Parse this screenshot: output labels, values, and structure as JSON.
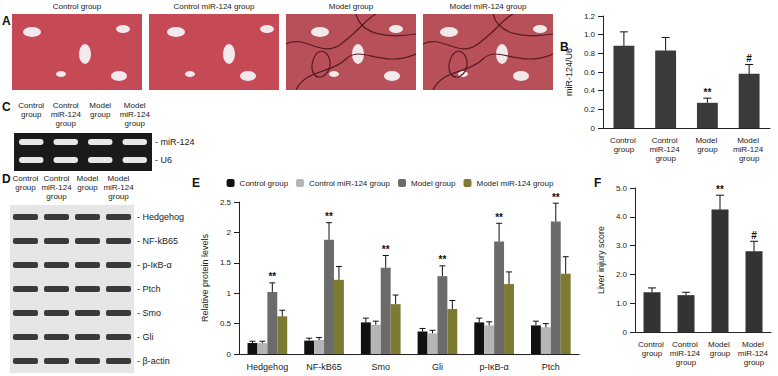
{
  "panels": {
    "A": {
      "label": "A",
      "images": [
        "Control group",
        "Control miR-124 group",
        "Model group",
        "Model miR-124 group"
      ]
    },
    "C": {
      "label": "C",
      "lanes": [
        "Control group",
        "Control miR-124 group",
        "Model group",
        "Model miR-124 group"
      ],
      "bands": [
        "- miR-124",
        "- U6"
      ]
    },
    "D": {
      "label": "D",
      "lanes": [
        "Control group",
        "Control miR-124 group",
        "Model group",
        "Model miR-124 group"
      ],
      "bands": [
        "- Hedgehog",
        "- NF-kB65",
        "- p-IκB-α",
        "- Ptch",
        "- Smo",
        "- Gli",
        "- β-actin"
      ]
    }
  },
  "chart_data": [
    {
      "panel": "B",
      "type": "bar",
      "categories": [
        "Control group",
        "Control miR-124 group",
        "Model group",
        "Model miR-124 group"
      ],
      "values": [
        0.88,
        0.83,
        0.27,
        0.58
      ],
      "errors": [
        0.15,
        0.14,
        0.05,
        0.1
      ],
      "annotations": [
        null,
        null,
        "**",
        "#"
      ],
      "color": "#3a3a3a",
      "y_label": "miR-124/U6",
      "ylim": [
        0,
        1.2
      ],
      "yticks": [
        0,
        0.2,
        0.4,
        0.6,
        0.8,
        {
          "value": 1,
          "label": "1.0"
        },
        1.2
      ],
      "grid": false
    },
    {
      "panel": "E",
      "type": "bar",
      "categories": [
        "Hedgehog",
        "NF-kB65",
        "Smo",
        "Gli",
        "p-IκB-α",
        "Ptch"
      ],
      "series": [
        {
          "name": "Control group",
          "color": "#111111",
          "values": [
            0.18,
            0.22,
            0.52,
            0.37,
            0.52,
            0.47
          ],
          "errors": [
            0.03,
            0.04,
            0.07,
            0.05,
            0.07,
            0.07
          ]
        },
        {
          "name": "Control miR-124 group",
          "color": "#b5b5b5",
          "values": [
            0.18,
            0.23,
            0.48,
            0.34,
            0.47,
            0.44
          ],
          "errors": [
            0.03,
            0.04,
            0.06,
            0.05,
            0.06,
            0.06
          ]
        },
        {
          "name": "Model group",
          "color": "#6b6b6b",
          "values": [
            1.02,
            1.88,
            1.42,
            1.28,
            1.85,
            2.18
          ],
          "errors": [
            0.15,
            0.28,
            0.2,
            0.17,
            0.3,
            0.3
          ],
          "annotations": [
            "**",
            "**",
            "**",
            "**",
            "**",
            "**"
          ]
        },
        {
          "name": "Model miR-124 group",
          "color": "#7d7a32",
          "values": [
            0.62,
            1.22,
            0.82,
            0.74,
            1.15,
            1.32
          ],
          "errors": [
            0.1,
            0.22,
            0.15,
            0.14,
            0.2,
            0.28
          ]
        }
      ],
      "legend": "top",
      "y_label": "Relative protein levels",
      "ylim": [
        0,
        2.5
      ],
      "yticks": [
        0,
        0.5,
        1,
        1.5,
        2,
        2.5
      ],
      "grid": false
    },
    {
      "panel": "F",
      "type": "bar",
      "categories": [
        "Control group",
        "Control miR-124 group",
        "Model group",
        "Model miR-124 group"
      ],
      "values": [
        1.38,
        1.28,
        4.25,
        2.8
      ],
      "errors": [
        0.15,
        0.1,
        0.5,
        0.35
      ],
      "annotations": [
        null,
        null,
        "**",
        "#"
      ],
      "color": "#333333",
      "y_label": "Liver injury score",
      "ylim": [
        0,
        5
      ],
      "yticks": [
        0,
        {
          "value": 1,
          "label": "1.0"
        },
        {
          "value": 2,
          "label": "2.0"
        },
        {
          "value": 3,
          "label": "3.0"
        },
        {
          "value": 4,
          "label": "4.0"
        },
        {
          "value": 5,
          "label": "5.0"
        }
      ],
      "grid": false
    }
  ]
}
